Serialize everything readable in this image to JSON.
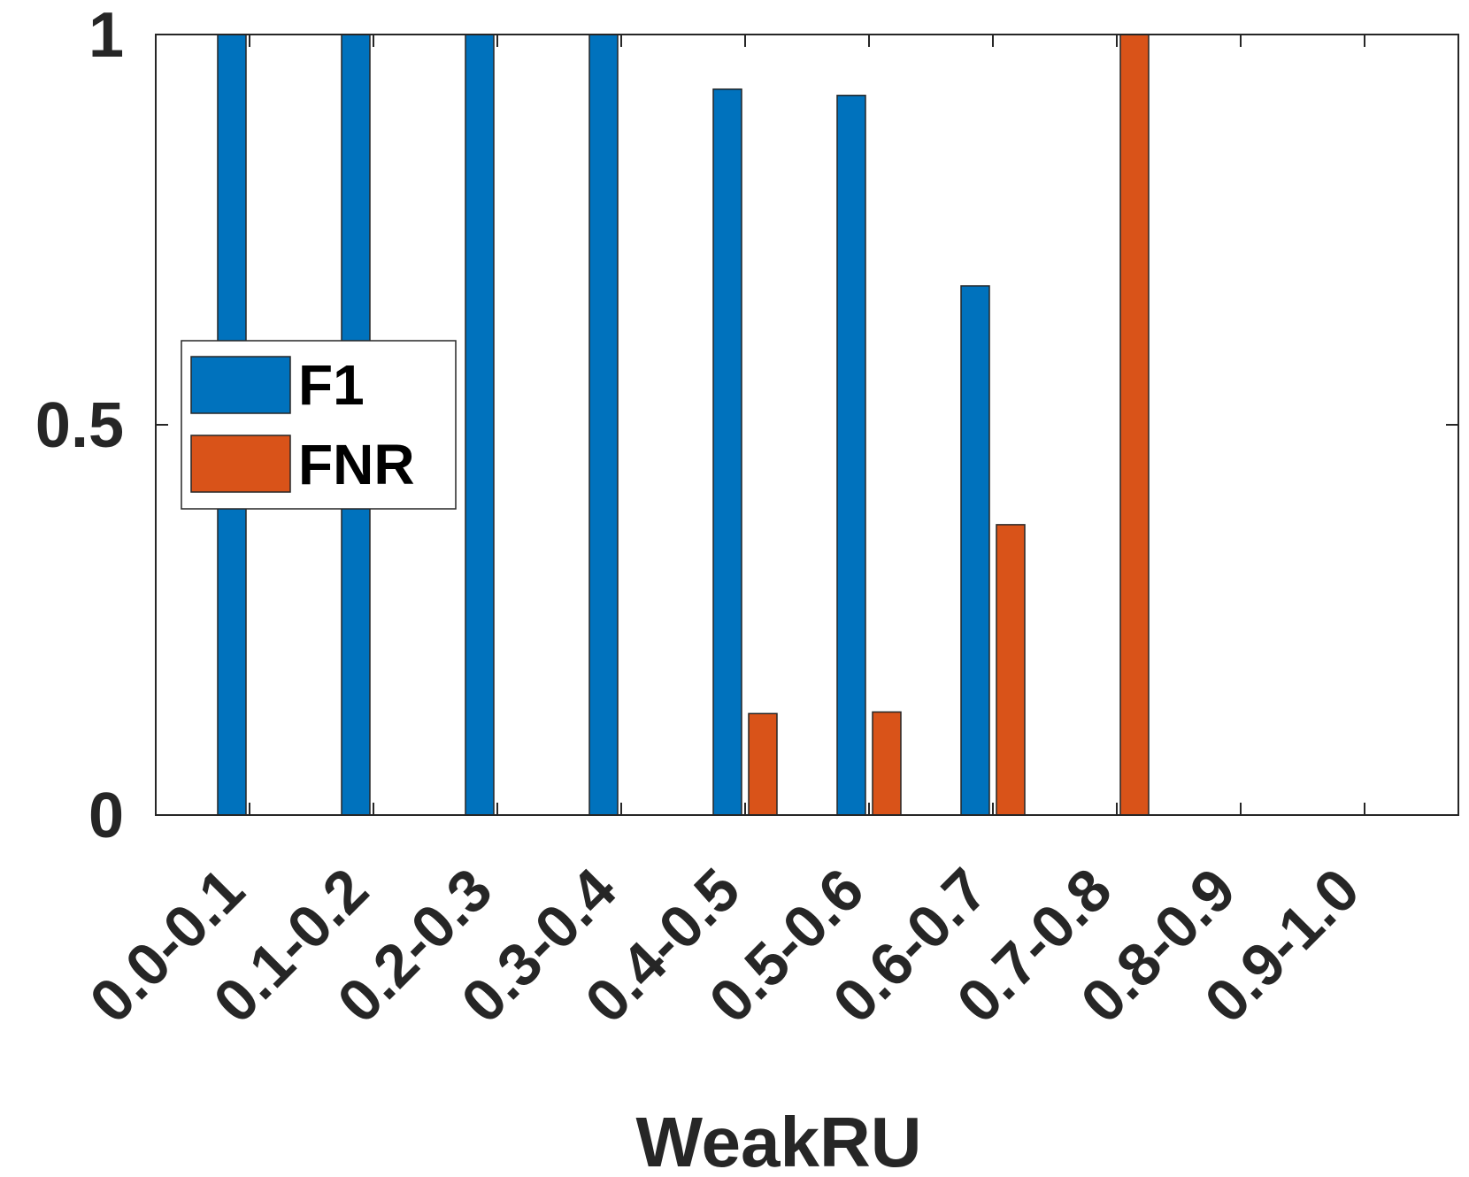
{
  "chart_data": {
    "type": "bar",
    "categories": [
      "0.0-0.1",
      "0.1-0.2",
      "0.2-0.3",
      "0.3-0.4",
      "0.4-0.5",
      "0.5-0.6",
      "0.6-0.7",
      "0.7-0.8",
      "0.8-0.9",
      "0.9-1.0"
    ],
    "series": [
      {
        "name": "F1",
        "color": "#0072BD",
        "values": [
          1,
          1,
          1,
          1,
          0.93,
          0.922,
          0.678,
          0,
          0,
          0
        ]
      },
      {
        "name": "FNR",
        "color": "#D95319",
        "values": [
          0,
          0,
          0,
          0,
          0.13,
          0.132,
          0.372,
          1,
          0,
          0
        ]
      }
    ],
    "xlabel": "WeakRU",
    "ylabel": "",
    "ylim": [
      0,
      1
    ],
    "yticks": [
      "0",
      "0.5",
      "1"
    ],
    "legend_position": "middle-left",
    "grid": false
  }
}
